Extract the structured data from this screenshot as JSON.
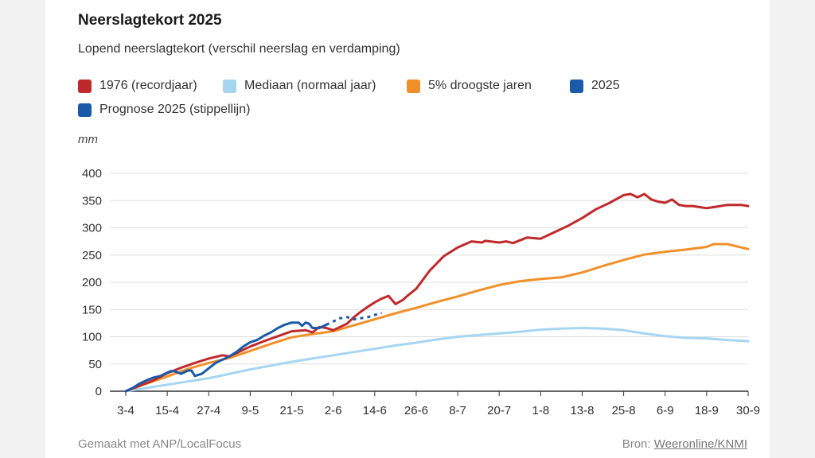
{
  "colors": {
    "c1976": "#c0292b",
    "mediaan": "#a6d5f2",
    "droog": "#f0902a",
    "y2025": "#1a5aa8",
    "grid": "#dddddd",
    "axis": "#333333"
  },
  "chart_data": {
    "type": "line",
    "title": "Neerslagtekort 2025",
    "subtitle": "Lopend neerslagtekort (verschil neerslag en verdamping)",
    "ylabel": "mm",
    "ylim": [
      0,
      400
    ],
    "yticks": [
      "0",
      "50",
      "100",
      "150",
      "200",
      "250",
      "300",
      "350",
      "400"
    ],
    "ytick_values": [
      0,
      50,
      100,
      150,
      200,
      250,
      300,
      350,
      400
    ],
    "xlim": [
      0,
      180
    ],
    "xticks": [
      "3-4",
      "15-4",
      "27-4",
      "9-5",
      "21-5",
      "2-6",
      "14-6",
      "26-6",
      "8-7",
      "20-7",
      "1-8",
      "13-8",
      "25-8",
      "6-9",
      "18-9",
      "30-9"
    ],
    "xtick_values": [
      0,
      12,
      24,
      36,
      48,
      60,
      72,
      84,
      96,
      108,
      120,
      132,
      144,
      156,
      168,
      180
    ],
    "legend": [
      {
        "key": "s1976",
        "label": "1976 (recordjaar)"
      },
      {
        "key": "mediaan",
        "label": "Mediaan (normaal jaar)"
      },
      {
        "key": "droog",
        "label": "5% droogste jaren"
      },
      {
        "key": "y2025",
        "label": "2025"
      },
      {
        "key": "prognose",
        "label": "Prognose 2025 (stippellijn)"
      }
    ],
    "series": [
      {
        "name": "Mediaan (normaal jaar)",
        "key": "mediaan",
        "color": "#a6d5f2",
        "dashed": false,
        "x": [
          0,
          6,
          12,
          18,
          24,
          30,
          36,
          42,
          48,
          54,
          60,
          66,
          72,
          78,
          84,
          90,
          96,
          102,
          108,
          114,
          120,
          126,
          132,
          138,
          144,
          150,
          156,
          162,
          168,
          174,
          180
        ],
        "y": [
          0,
          6,
          12,
          18,
          24,
          32,
          40,
          47,
          54,
          60,
          66,
          72,
          78,
          84,
          89,
          95,
          100,
          103,
          106,
          109,
          113,
          115,
          116,
          115,
          112,
          106,
          101,
          98,
          97,
          94,
          92
        ]
      },
      {
        "name": "5% droogste jaren",
        "key": "droog",
        "color": "#f0902a",
        "dashed": false,
        "x": [
          0,
          6,
          12,
          18,
          24,
          30,
          36,
          42,
          48,
          54,
          60,
          66,
          72,
          78,
          84,
          90,
          96,
          102,
          108,
          114,
          120,
          126,
          132,
          138,
          144,
          150,
          156,
          162,
          168,
          170,
          174,
          178,
          180
        ],
        "y": [
          0,
          14,
          27,
          41,
          52,
          61,
          74,
          87,
          99,
          105,
          110,
          121,
          132,
          143,
          153,
          164,
          174,
          185,
          195,
          202,
          206,
          209,
          218,
          230,
          241,
          251,
          256,
          260,
          265,
          270,
          270,
          264,
          261
        ]
      },
      {
        "name": "1976 (recordjaar)",
        "key": "s1976",
        "color": "#c0292b",
        "dashed": false,
        "x": [
          0,
          4,
          8,
          12,
          16,
          20,
          24,
          28,
          30,
          32,
          36,
          40,
          44,
          48,
          52,
          54,
          56,
          58,
          60,
          62,
          64,
          66,
          68,
          70,
          72,
          74,
          76,
          78,
          80,
          82,
          84,
          88,
          92,
          96,
          100,
          103,
          104,
          108,
          110,
          112,
          116,
          120,
          124,
          128,
          132,
          136,
          140,
          144,
          146,
          148,
          150,
          152,
          154,
          156,
          158,
          160,
          162,
          164,
          166,
          168,
          170,
          172,
          174,
          176,
          178,
          180
        ],
        "y": [
          0,
          10,
          20,
          33,
          43,
          52,
          60,
          66,
          64,
          70,
          82,
          92,
          101,
          110,
          112,
          108,
          118,
          116,
          112,
          118,
          124,
          136,
          146,
          155,
          163,
          170,
          175,
          160,
          167,
          178,
          188,
          222,
          248,
          264,
          275,
          273,
          276,
          273,
          275,
          272,
          282,
          280,
          292,
          304,
          318,
          334,
          346,
          360,
          362,
          356,
          362,
          352,
          348,
          346,
          352,
          342,
          340,
          340,
          338,
          336,
          338,
          340,
          342,
          342,
          342,
          340
        ]
      },
      {
        "name": "2025",
        "key": "y2025",
        "color": "#1a5aa8",
        "dashed": false,
        "x": [
          0,
          2,
          4,
          6,
          8,
          10,
          12,
          13,
          14,
          16,
          18,
          19,
          20,
          22,
          24,
          26,
          28,
          30,
          32,
          34,
          36,
          38,
          40,
          42,
          44,
          46,
          48,
          50,
          51,
          52,
          53,
          54,
          56,
          58
        ],
        "y": [
          0,
          6,
          14,
          20,
          25,
          28,
          34,
          37,
          37,
          32,
          38,
          38,
          28,
          32,
          42,
          52,
          58,
          64,
          72,
          82,
          90,
          94,
          102,
          108,
          116,
          122,
          126,
          126,
          120,
          126,
          124,
          116,
          116,
          122
        ]
      },
      {
        "name": "Prognose 2025 (stippellijn)",
        "key": "prognose",
        "color": "#1a5aa8",
        "dashed": true,
        "x": [
          58,
          60,
          62,
          64,
          66,
          68,
          70,
          72,
          74
        ],
        "y": [
          122,
          128,
          134,
          136,
          132,
          134,
          136,
          140,
          144
        ]
      }
    ]
  },
  "footer": {
    "left": "Gemaakt met ANP/LocalFocus",
    "source_label": "Bron:",
    "source_link": "Weeronline/KNMI"
  }
}
